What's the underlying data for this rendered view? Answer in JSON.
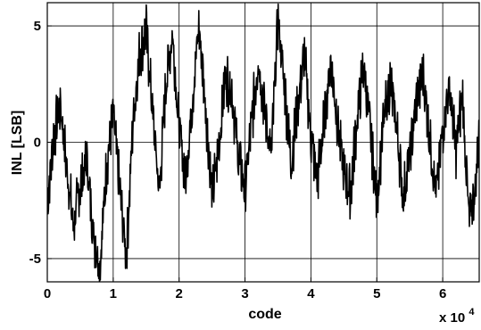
{
  "chart_data": {
    "type": "line",
    "title": "",
    "xlabel": "code",
    "ylabel": "INL [LSB]",
    "x_multiplier_label": {
      "base": "x 10",
      "exponent": "4"
    },
    "xlim": [
      0,
      65536
    ],
    "ylim": [
      -6,
      6
    ],
    "xticks": [
      0,
      10000,
      20000,
      30000,
      40000,
      50000,
      60000
    ],
    "xtick_labels": [
      "0",
      "1",
      "2",
      "3",
      "4",
      "5",
      "6"
    ],
    "yticks": [
      -5,
      0,
      5
    ],
    "ytick_labels": [
      "-5",
      "0",
      "5"
    ],
    "grid": true,
    "line_color": "#000000",
    "series": [
      {
        "x": [
          0,
          1000,
          2000,
          3000,
          4000,
          5000,
          6000,
          7000,
          8000,
          9000,
          10000,
          11000,
          12000,
          13000,
          14000,
          15000,
          16000,
          17000,
          18000,
          19000,
          20000,
          21000,
          22000,
          23000,
          24000,
          25000,
          26000,
          27000,
          28000,
          29000,
          30000,
          31000,
          32000,
          33000,
          34000,
          35000,
          36000,
          37000,
          38000,
          39000,
          40000,
          41000,
          42000,
          43000,
          44000,
          45000,
          46000,
          47000,
          48000,
          49000,
          50000,
          51000,
          52000,
          53000,
          54000,
          55000,
          56000,
          57000,
          58000,
          59000,
          60000,
          61000,
          62000,
          63000,
          64000,
          65000,
          65535
        ],
        "y": [
          -2.6,
          0.3,
          1.6,
          -1.2,
          -3.6,
          -1.8,
          -0.8,
          -3.9,
          -5.3,
          -1.0,
          1.3,
          -2.1,
          -4.9,
          0.9,
          3.8,
          4.9,
          1.2,
          -2.2,
          2.5,
          4.7,
          0.6,
          -1.6,
          1.8,
          5.0,
          1.6,
          -2.4,
          -0.3,
          2.9,
          2.2,
          -0.7,
          -2.0,
          0.8,
          3.6,
          1.4,
          -0.6,
          5.3,
          2.3,
          -0.9,
          1.6,
          3.8,
          0.2,
          -1.6,
          0.9,
          3.4,
          1.0,
          -1.4,
          -2.2,
          1.0,
          3.3,
          0.5,
          -2.6,
          0.8,
          2.6,
          0.7,
          -2.4,
          -0.6,
          1.8,
          2.9,
          0.3,
          -2.3,
          0.6,
          2.4,
          -0.4,
          2.1,
          -3.5,
          -1.8,
          0.8
        ]
      }
    ]
  }
}
